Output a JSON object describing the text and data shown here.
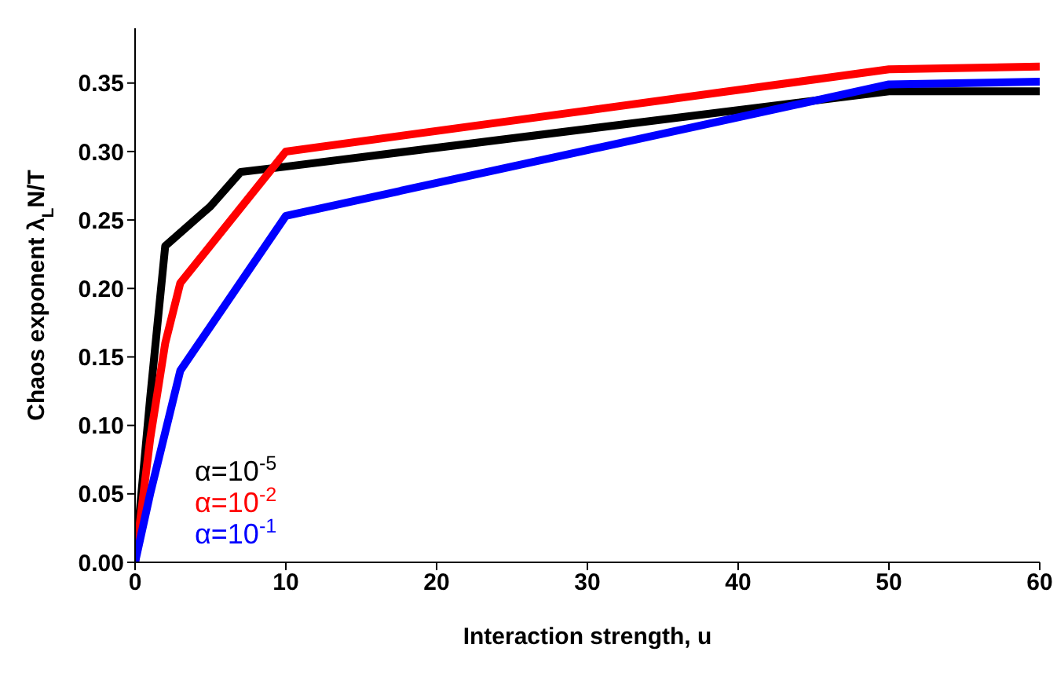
{
  "chart_data": {
    "type": "line",
    "xlabel": "Interaction strength, u",
    "ylabel": "Chaos exponent λ$_{L}$N/T",
    "xlim": [
      0,
      60
    ],
    "xticks": [
      0,
      10,
      20,
      30,
      40,
      50,
      60
    ],
    "ylim": [
      0,
      0.39
    ],
    "yticks": [
      {
        "value": 0,
        "label": "0.00"
      },
      {
        "value": 0.05,
        "label": "0.05"
      },
      {
        "value": 0.1,
        "label": "0.10"
      },
      {
        "value": 0.15,
        "label": "0.15"
      },
      {
        "value": 0.2,
        "label": "0.20"
      },
      {
        "value": 0.25,
        "label": "0.25"
      },
      {
        "value": 0.3,
        "label": "0.30"
      },
      {
        "value": 0.35,
        "label": "0.35"
      }
    ],
    "grid": false,
    "legend": "bottom left",
    "marker": "none",
    "line_style": "solid",
    "series": [
      {
        "name": "α=10$^{-5}$",
        "color": "#000000",
        "x": [
          0,
          1,
          2,
          5,
          7,
          10,
          50,
          60
        ],
        "values": [
          0,
          0.12,
          0.231,
          0.26,
          0.285,
          0.289,
          0.344,
          0.344
        ]
      },
      {
        "name": "α=10$^{-2}$",
        "color": "#ff0000",
        "x": [
          0,
          1,
          2,
          3,
          10,
          50,
          60
        ],
        "values": [
          0,
          0.09,
          0.16,
          0.204,
          0.3,
          0.36,
          0.362
        ]
      },
      {
        "name": "α=10$^{-1}$",
        "color": "#0000ff",
        "x": [
          0,
          1,
          3,
          10,
          50,
          60
        ],
        "values": [
          0,
          0.05,
          0.14,
          0.253,
          0.349,
          0.351
        ]
      }
    ]
  }
}
